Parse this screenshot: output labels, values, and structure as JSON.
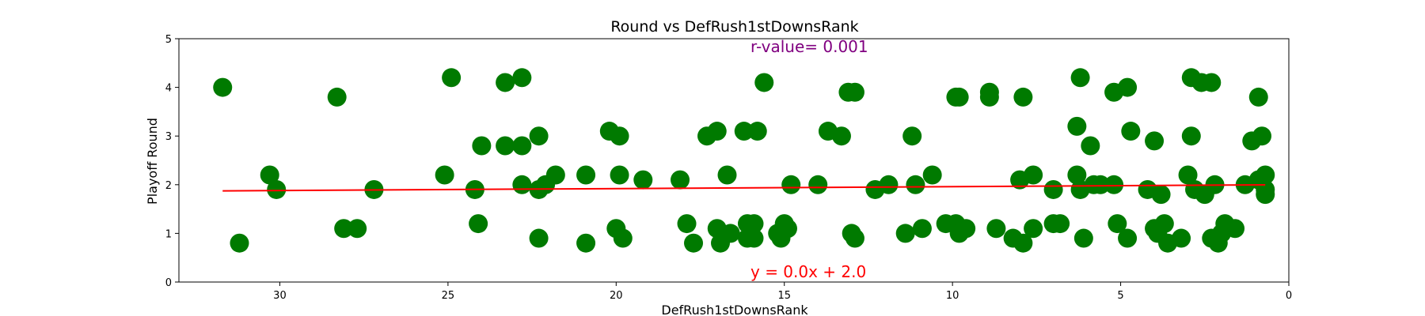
{
  "chart_data": {
    "type": "scatter",
    "title": "Round vs DefRush1stDownsRank",
    "xlabel": "DefRush1stDownsRank",
    "ylabel": "Playoff Round",
    "xlim": [
      33,
      0
    ],
    "ylim": [
      0,
      5
    ],
    "x_inverted": true,
    "xticks": [
      30,
      25,
      20,
      15,
      10,
      5,
      0
    ],
    "yticks": [
      0,
      1,
      2,
      3,
      4,
      5
    ],
    "grid": false,
    "marker_color": "#007a00",
    "line_color": "#ff0000",
    "annotations": {
      "r_value": {
        "text": "r-value= 0.001",
        "color": "#800080"
      },
      "equation": {
        "text": "y = 0.0x + 2.0",
        "color": "#ff0000"
      }
    },
    "regression": {
      "slope": -0.004,
      "intercept": 2.0,
      "x_range": [
        31.7,
        0.7
      ]
    },
    "points": [
      [
        31.7,
        4.0
      ],
      [
        31.2,
        0.8
      ],
      [
        30.3,
        2.2
      ],
      [
        30.1,
        1.9
      ],
      [
        28.3,
        3.8
      ],
      [
        28.1,
        1.1
      ],
      [
        27.7,
        1.1
      ],
      [
        27.2,
        1.9
      ],
      [
        25.1,
        2.2
      ],
      [
        24.9,
        4.2
      ],
      [
        24.2,
        1.9
      ],
      [
        24.1,
        1.2
      ],
      [
        24.0,
        2.8
      ],
      [
        23.3,
        4.1
      ],
      [
        23.3,
        2.8
      ],
      [
        22.8,
        4.2
      ],
      [
        22.8,
        2.8
      ],
      [
        22.8,
        2.0
      ],
      [
        22.3,
        3.0
      ],
      [
        22.3,
        1.9
      ],
      [
        22.3,
        0.9
      ],
      [
        22.1,
        2.0
      ],
      [
        21.8,
        2.2
      ],
      [
        20.9,
        2.2
      ],
      [
        20.9,
        0.8
      ],
      [
        20.2,
        3.1
      ],
      [
        20.0,
        1.1
      ],
      [
        19.9,
        3.0
      ],
      [
        19.9,
        2.2
      ],
      [
        19.8,
        0.9
      ],
      [
        19.2,
        2.1
      ],
      [
        18.1,
        2.1
      ],
      [
        17.9,
        1.2
      ],
      [
        17.7,
        0.8
      ],
      [
        17.3,
        3.0
      ],
      [
        17.0,
        3.1
      ],
      [
        17.0,
        1.1
      ],
      [
        16.9,
        0.8
      ],
      [
        16.7,
        2.2
      ],
      [
        16.6,
        1.0
      ],
      [
        16.2,
        3.1
      ],
      [
        16.1,
        1.2
      ],
      [
        16.1,
        0.9
      ],
      [
        15.9,
        1.2
      ],
      [
        15.9,
        0.9
      ],
      [
        15.8,
        3.1
      ],
      [
        15.6,
        4.1
      ],
      [
        15.2,
        1.0
      ],
      [
        15.1,
        0.9
      ],
      [
        15.0,
        1.2
      ],
      [
        14.9,
        1.1
      ],
      [
        14.8,
        2.0
      ],
      [
        14.0,
        2.0
      ],
      [
        13.7,
        3.1
      ],
      [
        13.3,
        3.0
      ],
      [
        13.1,
        3.9
      ],
      [
        13.0,
        1.0
      ],
      [
        12.9,
        3.9
      ],
      [
        12.9,
        0.9
      ],
      [
        12.3,
        1.9
      ],
      [
        11.9,
        2.0
      ],
      [
        11.4,
        1.0
      ],
      [
        11.2,
        3.0
      ],
      [
        11.1,
        2.0
      ],
      [
        10.9,
        1.1
      ],
      [
        10.6,
        2.2
      ],
      [
        10.2,
        1.2
      ],
      [
        9.9,
        1.2
      ],
      [
        9.9,
        3.8
      ],
      [
        9.8,
        1.0
      ],
      [
        9.8,
        3.8
      ],
      [
        9.6,
        1.1
      ],
      [
        8.9,
        3.9
      ],
      [
        8.9,
        3.8
      ],
      [
        8.7,
        1.1
      ],
      [
        8.2,
        0.9
      ],
      [
        8.0,
        2.1
      ],
      [
        7.9,
        3.8
      ],
      [
        7.9,
        0.8
      ],
      [
        7.6,
        2.2
      ],
      [
        7.6,
        1.1
      ],
      [
        7.0,
        1.9
      ],
      [
        7.0,
        1.2
      ],
      [
        6.8,
        1.2
      ],
      [
        6.3,
        3.2
      ],
      [
        6.3,
        2.2
      ],
      [
        6.2,
        4.2
      ],
      [
        6.2,
        1.9
      ],
      [
        6.1,
        0.9
      ],
      [
        5.9,
        2.8
      ],
      [
        5.8,
        2.0
      ],
      [
        5.6,
        2.0
      ],
      [
        5.2,
        3.9
      ],
      [
        5.2,
        2.0
      ],
      [
        5.1,
        1.2
      ],
      [
        4.8,
        4.0
      ],
      [
        4.8,
        0.9
      ],
      [
        4.7,
        3.1
      ],
      [
        4.2,
        1.9
      ],
      [
        4.0,
        2.9
      ],
      [
        4.0,
        1.1
      ],
      [
        3.9,
        1.0
      ],
      [
        3.8,
        1.8
      ],
      [
        3.7,
        1.2
      ],
      [
        3.6,
        0.8
      ],
      [
        3.2,
        0.9
      ],
      [
        3.0,
        2.2
      ],
      [
        2.9,
        4.2
      ],
      [
        2.9,
        3.0
      ],
      [
        2.8,
        1.9
      ],
      [
        2.6,
        4.1
      ],
      [
        2.5,
        1.8
      ],
      [
        2.3,
        4.1
      ],
      [
        2.2,
        2.0
      ],
      [
        2.3,
        0.9
      ],
      [
        2.1,
        0.8
      ],
      [
        2.0,
        1.0
      ],
      [
        1.9,
        1.2
      ],
      [
        1.6,
        1.1
      ],
      [
        1.3,
        2.0
      ],
      [
        1.1,
        2.9
      ],
      [
        0.9,
        2.1
      ],
      [
        0.9,
        3.8
      ],
      [
        0.8,
        3.0
      ],
      [
        0.7,
        1.9
      ],
      [
        0.7,
        2.2
      ],
      [
        0.7,
        1.8
      ]
    ]
  }
}
